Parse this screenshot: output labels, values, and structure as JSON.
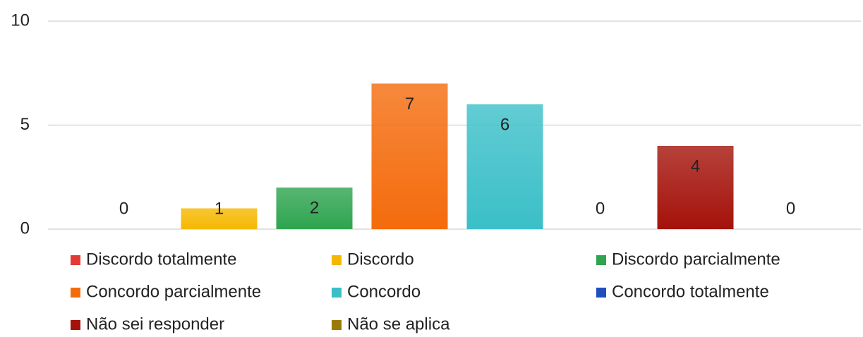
{
  "chart_data": {
    "type": "bar",
    "series": [
      {
        "name": "Discordo totalmente",
        "color": "#e53935",
        "values": [
          0
        ]
      },
      {
        "name": "Discordo",
        "color": "#f5b800",
        "values": [
          1
        ]
      },
      {
        "name": "Discordo parcialmente",
        "color": "#2ea44f",
        "values": [
          2
        ]
      },
      {
        "name": "Concordo parcialmente",
        "color": "#f46b0c",
        "values": [
          7
        ]
      },
      {
        "name": "Concordo",
        "color": "#3bbfc8",
        "values": [
          6
        ]
      },
      {
        "name": "Concordo totalmente",
        "color": "#1f4fbf",
        "values": [
          0
        ]
      },
      {
        "name": "Não sei responder",
        "color": "#a4120a",
        "values": [
          4
        ]
      },
      {
        "name": "Não se aplica",
        "color": "#9a7a06",
        "values": [
          0
        ]
      }
    ],
    "ylim": [
      0,
      10
    ],
    "yticks": [
      0,
      5,
      10
    ],
    "grid": true,
    "legend": "bottom"
  }
}
